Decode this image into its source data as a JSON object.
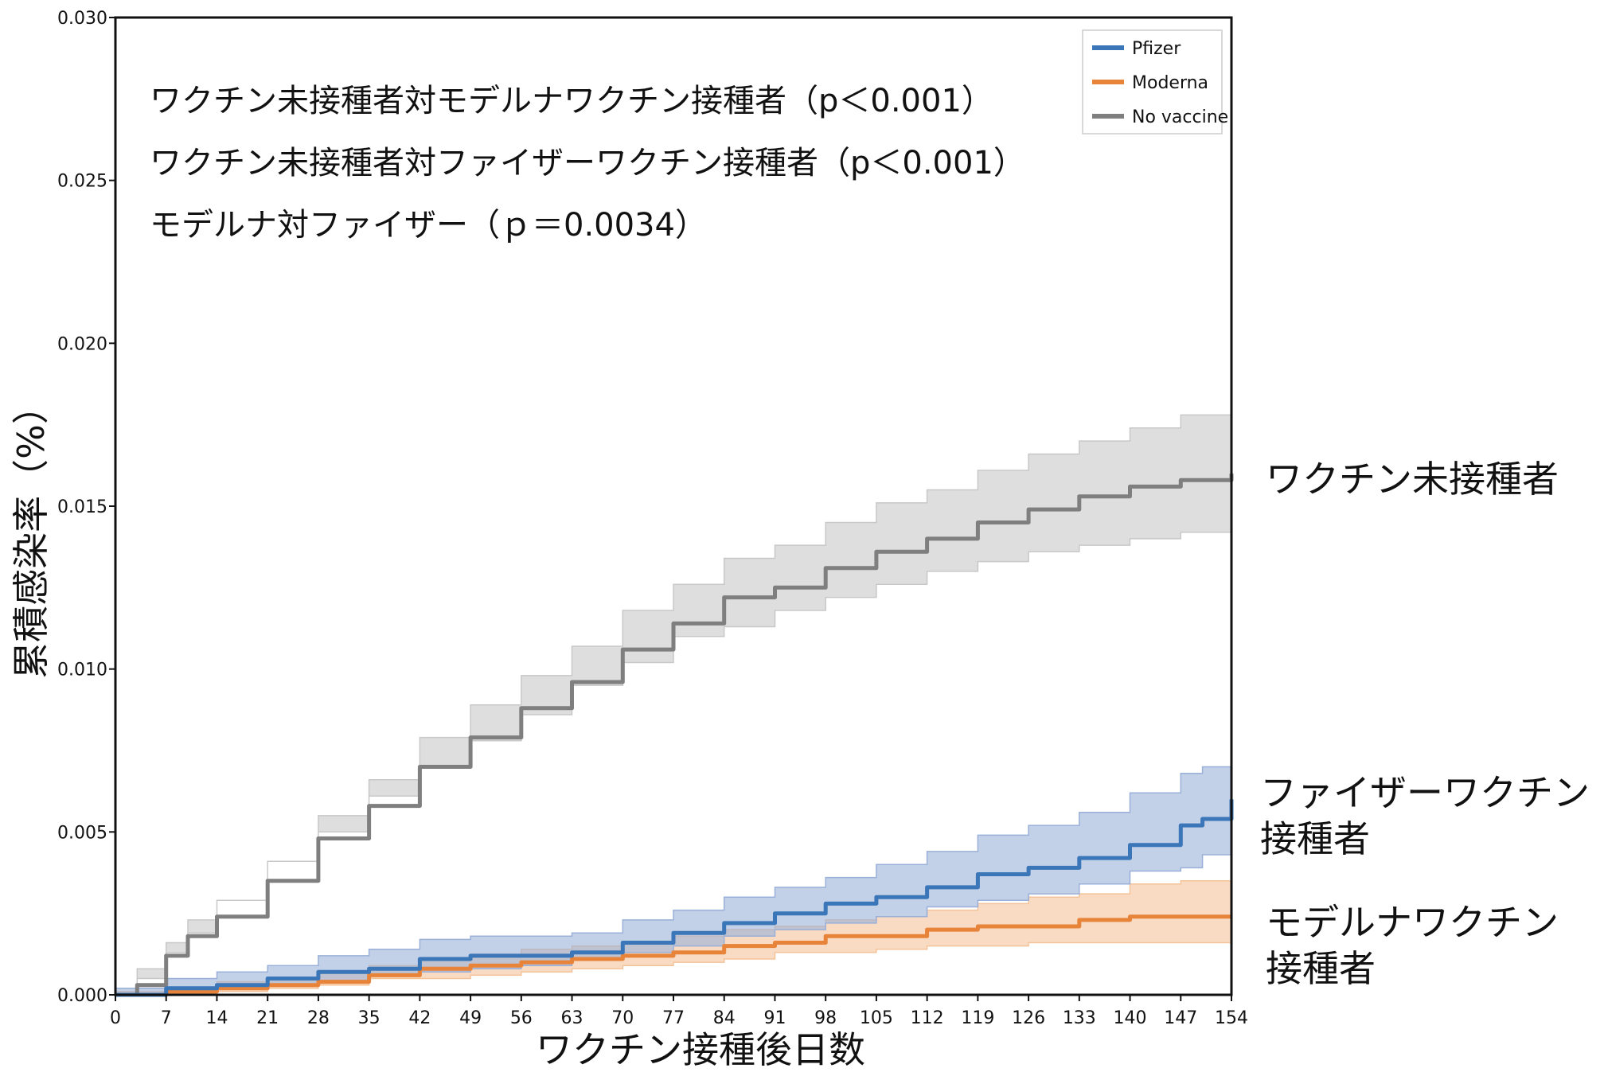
{
  "chart_data": {
    "type": "line",
    "xlabel": "ワクチン接種後日数",
    "ylabel": "累積感染率（%）",
    "xlim": [
      0,
      154
    ],
    "ylim": [
      0,
      0.03
    ],
    "x_ticks": [
      0,
      7,
      14,
      21,
      28,
      35,
      42,
      49,
      56,
      63,
      70,
      77,
      84,
      91,
      98,
      105,
      112,
      119,
      126,
      133,
      140,
      147,
      154
    ],
    "y_ticks": [
      "0.000",
      "0.005",
      "0.010",
      "0.015",
      "0.020",
      "0.025",
      "0.030"
    ],
    "legend_position": "top-right",
    "annotations": [
      "ワクチン未接種者対モデルナワクチン接種者（p＜0.001）",
      "ワクチン未接種者対ファイザーワクチン接種者（p＜0.001）",
      "モデルナ対ファイザー（ｐ＝0.0034）"
    ],
    "series_labels": {
      "no_vaccine": [
        "ワクチン未接種者"
      ],
      "pfizer": [
        "ファイザーワクチン",
        "接種者"
      ],
      "moderna": [
        "モデルナワクチン",
        "接種者"
      ]
    },
    "series": [
      {
        "name": "Pfizer",
        "color": "#3a76b8",
        "band_color": "#9ab0d8",
        "x": [
          0,
          7,
          14,
          21,
          28,
          35,
          42,
          49,
          56,
          63,
          70,
          77,
          84,
          91,
          98,
          105,
          112,
          119,
          126,
          133,
          140,
          147,
          150,
          154
        ],
        "y": [
          0,
          0.0002,
          0.0003,
          0.0005,
          0.0007,
          0.0008,
          0.0011,
          0.0012,
          0.0012,
          0.0013,
          0.0016,
          0.0019,
          0.0022,
          0.0025,
          0.0028,
          0.003,
          0.0033,
          0.0037,
          0.0039,
          0.0042,
          0.0046,
          0.0052,
          0.0054,
          0.006
        ],
        "lower": [
          0,
          0.0,
          0.0001,
          0.0002,
          0.0003,
          0.0004,
          0.0006,
          0.0007,
          0.0008,
          0.0009,
          0.0011,
          0.0013,
          0.0015,
          0.0018,
          0.002,
          0.0022,
          0.0024,
          0.0027,
          0.0029,
          0.0031,
          0.0034,
          0.0038,
          0.0039,
          0.0043
        ],
        "upper": [
          0.0002,
          0.0005,
          0.0007,
          0.0009,
          0.0012,
          0.0014,
          0.0017,
          0.0018,
          0.0018,
          0.0019,
          0.0023,
          0.0026,
          0.003,
          0.0033,
          0.0036,
          0.004,
          0.0044,
          0.0049,
          0.0052,
          0.0056,
          0.0062,
          0.0068,
          0.007,
          0.0081
        ]
      },
      {
        "name": "Moderna",
        "color": "#e8843a",
        "band_color": "#f4c39a",
        "x": [
          0,
          7,
          14,
          21,
          28,
          35,
          42,
          49,
          56,
          63,
          70,
          77,
          84,
          91,
          98,
          105,
          112,
          119,
          126,
          133,
          140,
          147,
          154
        ],
        "y": [
          0,
          0.0001,
          0.0002,
          0.0003,
          0.0004,
          0.0006,
          0.0008,
          0.0009,
          0.001,
          0.0011,
          0.0012,
          0.0013,
          0.0015,
          0.0016,
          0.0018,
          0.0018,
          0.002,
          0.0021,
          0.0021,
          0.0023,
          0.0024,
          0.0024,
          0.0024
        ],
        "lower": [
          0,
          0.0,
          0.0,
          0.0001,
          0.0002,
          0.0003,
          0.0005,
          0.0005,
          0.0006,
          0.0007,
          0.0008,
          0.0009,
          0.001,
          0.0011,
          0.0013,
          0.0013,
          0.0014,
          0.0015,
          0.0015,
          0.0016,
          0.0016,
          0.0016,
          0.0016
        ],
        "upper": [
          0.0001,
          0.0002,
          0.0004,
          0.0005,
          0.0007,
          0.0009,
          0.0011,
          0.0012,
          0.0014,
          0.0015,
          0.0016,
          0.0018,
          0.002,
          0.0021,
          0.0023,
          0.0024,
          0.0026,
          0.0028,
          0.003,
          0.0031,
          0.0034,
          0.0035,
          0.0035
        ]
      },
      {
        "name": "No vaccine",
        "color": "#7f7f7f",
        "band_color": "#c8c8c8",
        "x": [
          0,
          3,
          7,
          10,
          14,
          21,
          28,
          35,
          42,
          49,
          56,
          63,
          70,
          77,
          84,
          91,
          98,
          105,
          112,
          119,
          126,
          133,
          140,
          147,
          154
        ],
        "y": [
          0,
          0.0003,
          0.0012,
          0.0018,
          0.0024,
          0.0035,
          0.0048,
          0.0058,
          0.007,
          0.0079,
          0.0088,
          0.0096,
          0.0106,
          0.0114,
          0.0122,
          0.0125,
          0.0131,
          0.0136,
          0.014,
          0.0145,
          0.0149,
          0.0153,
          0.0156,
          0.0158,
          0.016
        ],
        "lower": [
          0,
          0.0001,
          0.0008,
          0.0013,
          0.0019,
          0.0029,
          0.0041,
          0.005,
          0.0061,
          0.007,
          0.0078,
          0.0086,
          0.0095,
          0.0102,
          0.011,
          0.0113,
          0.0118,
          0.0122,
          0.0126,
          0.013,
          0.0133,
          0.0136,
          0.0138,
          0.014,
          0.0142
        ],
        "upper": [
          0.0001,
          0.0005,
          0.0016,
          0.0023,
          0.0029,
          0.0041,
          0.0055,
          0.0066,
          0.0079,
          0.0089,
          0.0098,
          0.0107,
          0.0118,
          0.0126,
          0.0134,
          0.0138,
          0.0145,
          0.0151,
          0.0155,
          0.0161,
          0.0166,
          0.017,
          0.0174,
          0.0178,
          0.018
        ]
      }
    ]
  }
}
